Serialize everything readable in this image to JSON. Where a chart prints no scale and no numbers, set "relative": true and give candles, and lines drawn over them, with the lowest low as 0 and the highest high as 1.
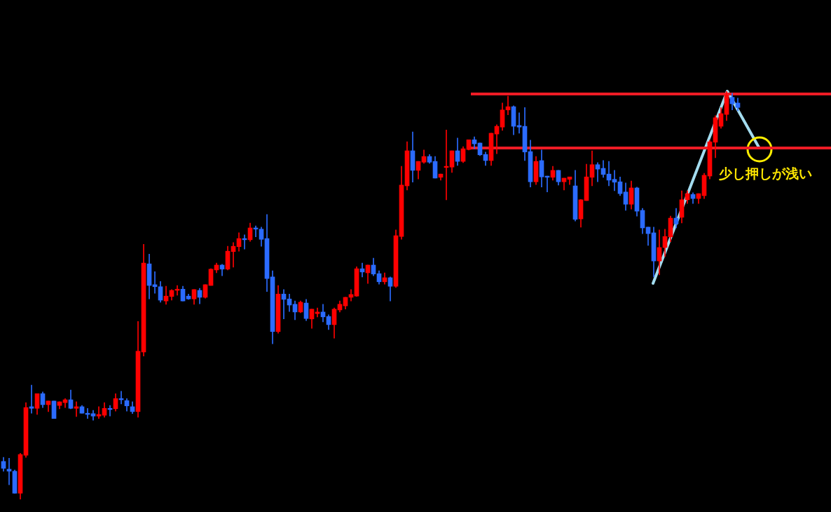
{
  "chart_data": {
    "type": "candlestick",
    "relative": true,
    "categories": [
      null,
      null,
      null,
      null,
      null,
      null,
      null,
      null,
      null,
      null,
      null,
      null,
      null,
      null,
      null,
      null,
      null,
      null,
      null,
      null,
      null,
      null,
      null,
      null,
      null,
      null,
      null,
      null,
      null,
      null,
      null,
      null,
      null,
      null,
      null,
      null,
      null,
      null,
      null,
      null,
      null,
      null,
      null,
      null,
      null,
      null,
      null,
      null,
      null,
      null,
      null,
      null,
      null,
      null,
      null,
      null,
      null,
      null,
      null,
      null,
      null,
      null,
      null,
      null,
      null,
      null,
      null,
      null,
      null,
      null,
      null,
      null,
      null,
      null,
      null,
      null,
      null,
      null,
      null,
      null,
      null,
      null,
      null,
      null,
      null,
      null,
      null,
      null,
      null,
      null,
      null,
      null,
      null,
      null,
      null,
      null,
      null,
      null,
      null,
      null,
      null,
      null,
      null,
      null,
      null,
      null,
      null,
      null,
      null,
      null,
      null,
      null,
      null,
      null,
      null,
      null,
      null,
      null,
      null,
      null,
      null,
      null,
      null,
      null,
      null,
      null,
      null,
      null,
      null,
      null,
      null,
      null
    ],
    "ohlc": [
      [
        0.093,
        0.103,
        0.069,
        0.076
      ],
      [
        0.074,
        0.101,
        0.036,
        0.069
      ],
      [
        0.069,
        0.072,
        0.015,
        0.015
      ],
      [
        0.015,
        0.113,
        0,
        0.11
      ],
      [
        0.108,
        0.237,
        0.103,
        0.225
      ],
      [
        0.227,
        0.28,
        0.211,
        0.223
      ],
      [
        0.223,
        0.259,
        0.208,
        0.259
      ],
      [
        0.259,
        0.263,
        0.225,
        0.232
      ],
      [
        0.232,
        0.241,
        0.215,
        0.241
      ],
      [
        0.241,
        0.241,
        0.198,
        0.198
      ],
      [
        0.23,
        0.239,
        0.222,
        0.239
      ],
      [
        0.237,
        0.247,
        0.225,
        0.244
      ],
      [
        0.244,
        0.268,
        0.222,
        0.223
      ],
      [
        0.223,
        0.239,
        0.203,
        0.227
      ],
      [
        0.227,
        0.23,
        0.211,
        0.211
      ],
      [
        0.211,
        0.223,
        0.198,
        0.208
      ],
      [
        0.21,
        0.218,
        0.194,
        0.204
      ],
      [
        0.204,
        0.227,
        0.198,
        0.208
      ],
      [
        0.206,
        0.237,
        0.201,
        0.223
      ],
      [
        0.223,
        0.23,
        0.204,
        0.22
      ],
      [
        0.222,
        0.259,
        0.216,
        0.247
      ],
      [
        0.247,
        0.265,
        0.234,
        0.244
      ],
      [
        0.242,
        0.247,
        0.216,
        0.229
      ],
      [
        0.227,
        0.239,
        0.21,
        0.215
      ],
      [
        0.215,
        0.436,
        0.201,
        0.363
      ],
      [
        0.361,
        0.625,
        0.351,
        0.579
      ],
      [
        0.577,
        0.601,
        0.491,
        0.524
      ],
      [
        0.526,
        0.558,
        0.505,
        0.521
      ],
      [
        0.521,
        0.534,
        0.483,
        0.488
      ],
      [
        0.486,
        0.522,
        0.478,
        0.498
      ],
      [
        0.497,
        0.514,
        0.488,
        0.512
      ],
      [
        0.512,
        0.524,
        0.5,
        0.515
      ],
      [
        0.515,
        0.522,
        0.486,
        0.486
      ],
      [
        0.498,
        0.503,
        0.49,
        0.491
      ],
      [
        0.491,
        0.514,
        0.478,
        0.514
      ],
      [
        0.512,
        0.517,
        0.479,
        0.495
      ],
      [
        0.495,
        0.526,
        0.493,
        0.526
      ],
      [
        0.524,
        0.565,
        0.524,
        0.564
      ],
      [
        0.562,
        0.579,
        0.555,
        0.574
      ],
      [
        0.574,
        0.576,
        0.548,
        0.564
      ],
      [
        0.564,
        0.62,
        0.562,
        0.608
      ],
      [
        0.607,
        0.629,
        0.569,
        0.62
      ],
      [
        0.619,
        0.653,
        0.608,
        0.639
      ],
      [
        0.639,
        0.648,
        0.613,
        0.636
      ],
      [
        0.636,
        0.677,
        0.632,
        0.665
      ],
      [
        0.665,
        0.67,
        0.643,
        0.662
      ],
      [
        0.662,
        0.667,
        0.62,
        0.637
      ],
      [
        0.639,
        0.698,
        0.509,
        0.541
      ],
      [
        0.545,
        0.56,
        0.381,
        0.411
      ],
      [
        0.411,
        0.524,
        0.407,
        0.503
      ],
      [
        0.503,
        0.514,
        0.442,
        0.49
      ],
      [
        0.491,
        0.503,
        0.46,
        0.476
      ],
      [
        0.478,
        0.486,
        0.44,
        0.459
      ],
      [
        0.459,
        0.486,
        0.457,
        0.483
      ],
      [
        0.481,
        0.49,
        0.438,
        0.443
      ],
      [
        0.442,
        0.466,
        0.419,
        0.466
      ],
      [
        0.455,
        0.469,
        0.447,
        0.459
      ],
      [
        0.459,
        0.478,
        0.435,
        0.447
      ],
      [
        0.448,
        0.452,
        0.416,
        0.428
      ],
      [
        0.428,
        0.469,
        0.395,
        0.466
      ],
      [
        0.464,
        0.486,
        0.459,
        0.478
      ],
      [
        0.474,
        0.495,
        0.466,
        0.495
      ],
      [
        0.495,
        0.514,
        0.486,
        0.502
      ],
      [
        0.498,
        0.57,
        0.497,
        0.565
      ],
      [
        0.565,
        0.579,
        0.545,
        0.557
      ],
      [
        0.555,
        0.574,
        0.529,
        0.574
      ],
      [
        0.574,
        0.591,
        0.548,
        0.552
      ],
      [
        0.553,
        0.56,
        0.527,
        0.533
      ],
      [
        0.533,
        0.555,
        0.527,
        0.543
      ],
      [
        0.543,
        0.545,
        0.486,
        0.522
      ],
      [
        0.522,
        0.66,
        0.519,
        0.646
      ],
      [
        0.644,
        0.816,
        0.637,
        0.77
      ],
      [
        0.768,
        0.876,
        0.758,
        0.854
      ],
      [
        0.854,
        0.9,
        0.777,
        0.806
      ],
      [
        0.806,
        0.828,
        0.785,
        0.828
      ],
      [
        0.826,
        0.856,
        0.823,
        0.84
      ],
      [
        0.84,
        0.845,
        0.823,
        0.826
      ],
      [
        0.828,
        0.84,
        0.787,
        0.787
      ],
      [
        0.789,
        0.797,
        0.782,
        0.797
      ],
      [
        0.813,
        0.905,
        0.734,
        0.816
      ],
      [
        0.814,
        0.854,
        0.801,
        0.854
      ],
      [
        0.854,
        0.885,
        0.818,
        0.828
      ],
      [
        0.828,
        0.864,
        0.825,
        0.859
      ],
      [
        0.857,
        0.881,
        0.856,
        0.881
      ],
      [
        0.881,
        0.888,
        0.859,
        0.871
      ],
      [
        0.873,
        0.873,
        0.842,
        0.844
      ],
      [
        0.845,
        0.851,
        0.818,
        0.83
      ],
      [
        0.83,
        0.897,
        0.818,
        0.897
      ],
      [
        0.895,
        0.918,
        0.847,
        0.914
      ],
      [
        0.912,
        0.971,
        0.904,
        0.954
      ],
      [
        0.954,
        0.988,
        0.942,
        0.962
      ],
      [
        0.962,
        0.964,
        0.893,
        0.914
      ],
      [
        0.916,
        0.947,
        0.897,
        0.912
      ],
      [
        0.914,
        0.96,
        0.83,
        0.851
      ],
      [
        0.852,
        0.88,
        0.765,
        0.778
      ],
      [
        0.778,
        0.84,
        0.771,
        0.828
      ],
      [
        0.83,
        0.856,
        0.765,
        0.79
      ],
      [
        0.792,
        0.792,
        0.753,
        0.789
      ],
      [
        0.789,
        0.816,
        0.782,
        0.806
      ],
      [
        0.806,
        0.806,
        0.77,
        0.778
      ],
      [
        0.778,
        0.787,
        0.758,
        0.787
      ],
      [
        0.784,
        0.79,
        0.771,
        0.79
      ],
      [
        0.768,
        0.806,
        0.682,
        0.686
      ],
      [
        0.687,
        0.735,
        0.667,
        0.734
      ],
      [
        0.732,
        0.821,
        0.732,
        0.79
      ],
      [
        0.789,
        0.854,
        0.768,
        0.82
      ],
      [
        0.82,
        0.825,
        0.778,
        0.809
      ],
      [
        0.811,
        0.83,
        0.789,
        0.796
      ],
      [
        0.797,
        0.828,
        0.768,
        0.782
      ],
      [
        0.784,
        0.806,
        0.756,
        0.777
      ],
      [
        0.778,
        0.79,
        0.744,
        0.749
      ],
      [
        0.753,
        0.775,
        0.708,
        0.723
      ],
      [
        0.723,
        0.78,
        0.711,
        0.763
      ],
      [
        0.763,
        0.765,
        0.694,
        0.706
      ],
      [
        0.708,
        0.713,
        0.651,
        0.665
      ],
      [
        0.667,
        0.667,
        0.622,
        0.651
      ],
      [
        0.653,
        0.667,
        0.545,
        0.584
      ],
      [
        0.584,
        0.66,
        0.55,
        0.617
      ],
      [
        0.617,
        0.662,
        0.595,
        0.644
      ],
      [
        0.643,
        0.694,
        0.631,
        0.689
      ],
      [
        0.689,
        0.713,
        0.665,
        0.675
      ],
      [
        0.691,
        0.756,
        0.677,
        0.734
      ],
      [
        0.734,
        0.756,
        0.725,
        0.749
      ],
      [
        0.747,
        0.751,
        0.725,
        0.737
      ],
      [
        0.737,
        0.749,
        0.725,
        0.749
      ],
      [
        0.744,
        0.799,
        0.737,
        0.794
      ],
      [
        0.792,
        0.88,
        0.785,
        0.876
      ],
      [
        0.875,
        0.94,
        0.837,
        0.935
      ],
      [
        0.914,
        0.96,
        0.909,
        0.945
      ],
      [
        0.943,
        1,
        0.928,
        0.99
      ],
      [
        0.985,
        0.995,
        0.954,
        0.969
      ],
      [
        0.971,
        0.983,
        0.952,
        0.96
      ]
    ],
    "colors": [
      "#2b6bff",
      "#2b6bff",
      "#2b6bff",
      "#ff0000",
      "#ff0000",
      "#2b6bff",
      "#ff0000",
      "#2b6bff",
      "#ff0000",
      "#2b6bff",
      "#ff0000",
      "#ff0000",
      "#2b6bff",
      "#ff0000",
      "#2b6bff",
      "#2b6bff",
      "#2b6bff",
      "#ff0000",
      "#ff0000",
      "#2b6bff",
      "#ff0000",
      "#2b6bff",
      "#2b6bff",
      "#2b6bff",
      "#ff0000",
      "#ff0000",
      "#2b6bff",
      "#2b6bff",
      "#2b6bff",
      "#ff0000",
      "#ff0000",
      "#ff0000",
      "#2b6bff",
      "#2b6bff",
      "#ff0000",
      "#2b6bff",
      "#ff0000",
      "#ff0000",
      "#ff0000",
      "#2b6bff",
      "#ff0000",
      "#ff0000",
      "#ff0000",
      "#2b6bff",
      "#ff0000",
      "#2b6bff",
      "#2b6bff",
      "#2b6bff",
      "#2b6bff",
      "#ff0000",
      "#2b6bff",
      "#2b6bff",
      "#2b6bff",
      "#ff0000",
      "#2b6bff",
      "#ff0000",
      "#ff0000",
      "#2b6bff",
      "#2b6bff",
      "#ff0000",
      "#ff0000",
      "#ff0000",
      "#ff0000",
      "#ff0000",
      "#2b6bff",
      "#ff0000",
      "#2b6bff",
      "#2b6bff",
      "#ff0000",
      "#2b6bff",
      "#ff0000",
      "#ff0000",
      "#ff0000",
      "#2b6bff",
      "#ff0000",
      "#ff0000",
      "#2b6bff",
      "#2b6bff",
      "#ff0000",
      "#ff0000",
      "#ff0000",
      "#2b6bff",
      "#ff0000",
      "#ff0000",
      "#2b6bff",
      "#2b6bff",
      "#2b6bff",
      "#ff0000",
      "#ff0000",
      "#ff0000",
      "#ff0000",
      "#2b6bff",
      "#2b6bff",
      "#2b6bff",
      "#2b6bff",
      "#ff0000",
      "#2b6bff",
      "#2b6bff",
      "#ff0000",
      "#2b6bff",
      "#ff0000",
      "#ff0000",
      "#2b6bff",
      "#ff0000",
      "#ff0000",
      "#ff0000",
      "#2b6bff",
      "#2b6bff",
      "#2b6bff",
      "#2b6bff",
      "#2b6bff",
      "#2b6bff",
      "#ff0000",
      "#2b6bff",
      "#2b6bff",
      "#2b6bff",
      "#2b6bff",
      "#ff0000",
      "#ff0000",
      "#ff0000",
      "#2b6bff",
      "#ff0000",
      "#ff0000",
      "#2b6bff",
      "#ff0000",
      "#ff0000",
      "#ff0000",
      "#ff0000",
      "#ff0000",
      "#ff0000",
      "#2b6bff",
      "#2b6bff"
    ],
    "ref_lines": [
      {
        "axis": "y",
        "value": 0.993,
        "color": "#ee1c25"
      },
      {
        "axis": "y",
        "value": 0.861,
        "color": "#ee1c25"
      }
    ],
    "annotations": [
      "少し押しが浅い"
    ]
  }
}
